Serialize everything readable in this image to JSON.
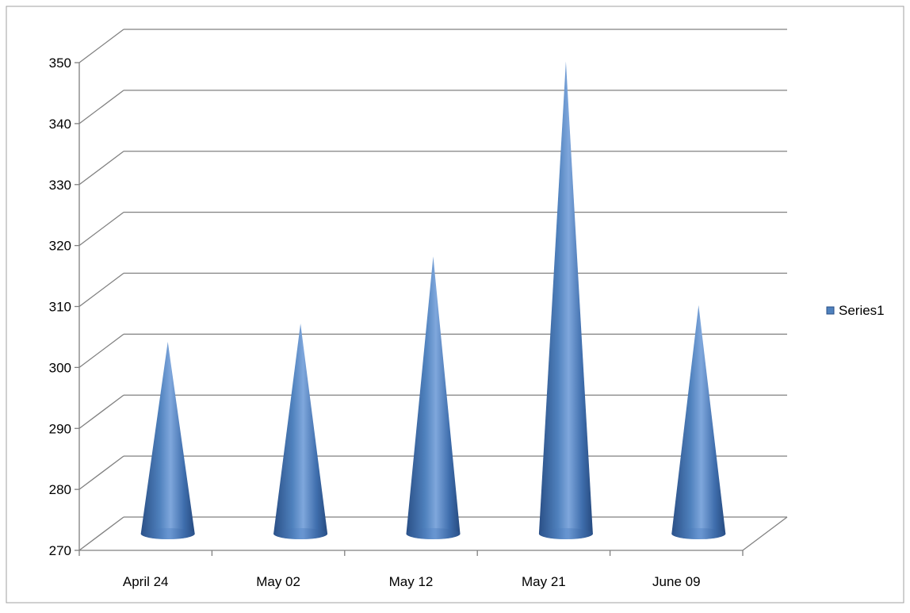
{
  "chart_data": {
    "type": "bar",
    "bar_shape": "cone",
    "three_d": true,
    "categories": [
      "April 24",
      "May 02",
      "May 12",
      "May 21",
      "June 09"
    ],
    "series": [
      {
        "name": "Series1",
        "values": [
          302,
          305,
          316,
          348,
          308
        ]
      }
    ],
    "ylim": [
      270,
      350
    ],
    "yticks": [
      "270",
      "280",
      "290",
      "300",
      "310",
      "320",
      "330",
      "340",
      "350"
    ],
    "grid": true,
    "legend": "right",
    "colors": {
      "cone_dark": "#2a4f86",
      "cone_mid": "#4f81bd",
      "cone_light": "#7fa7dc",
      "grid": "#808080",
      "axis": "#808080",
      "text": "#000000",
      "frame": "#a0a0a0"
    }
  }
}
